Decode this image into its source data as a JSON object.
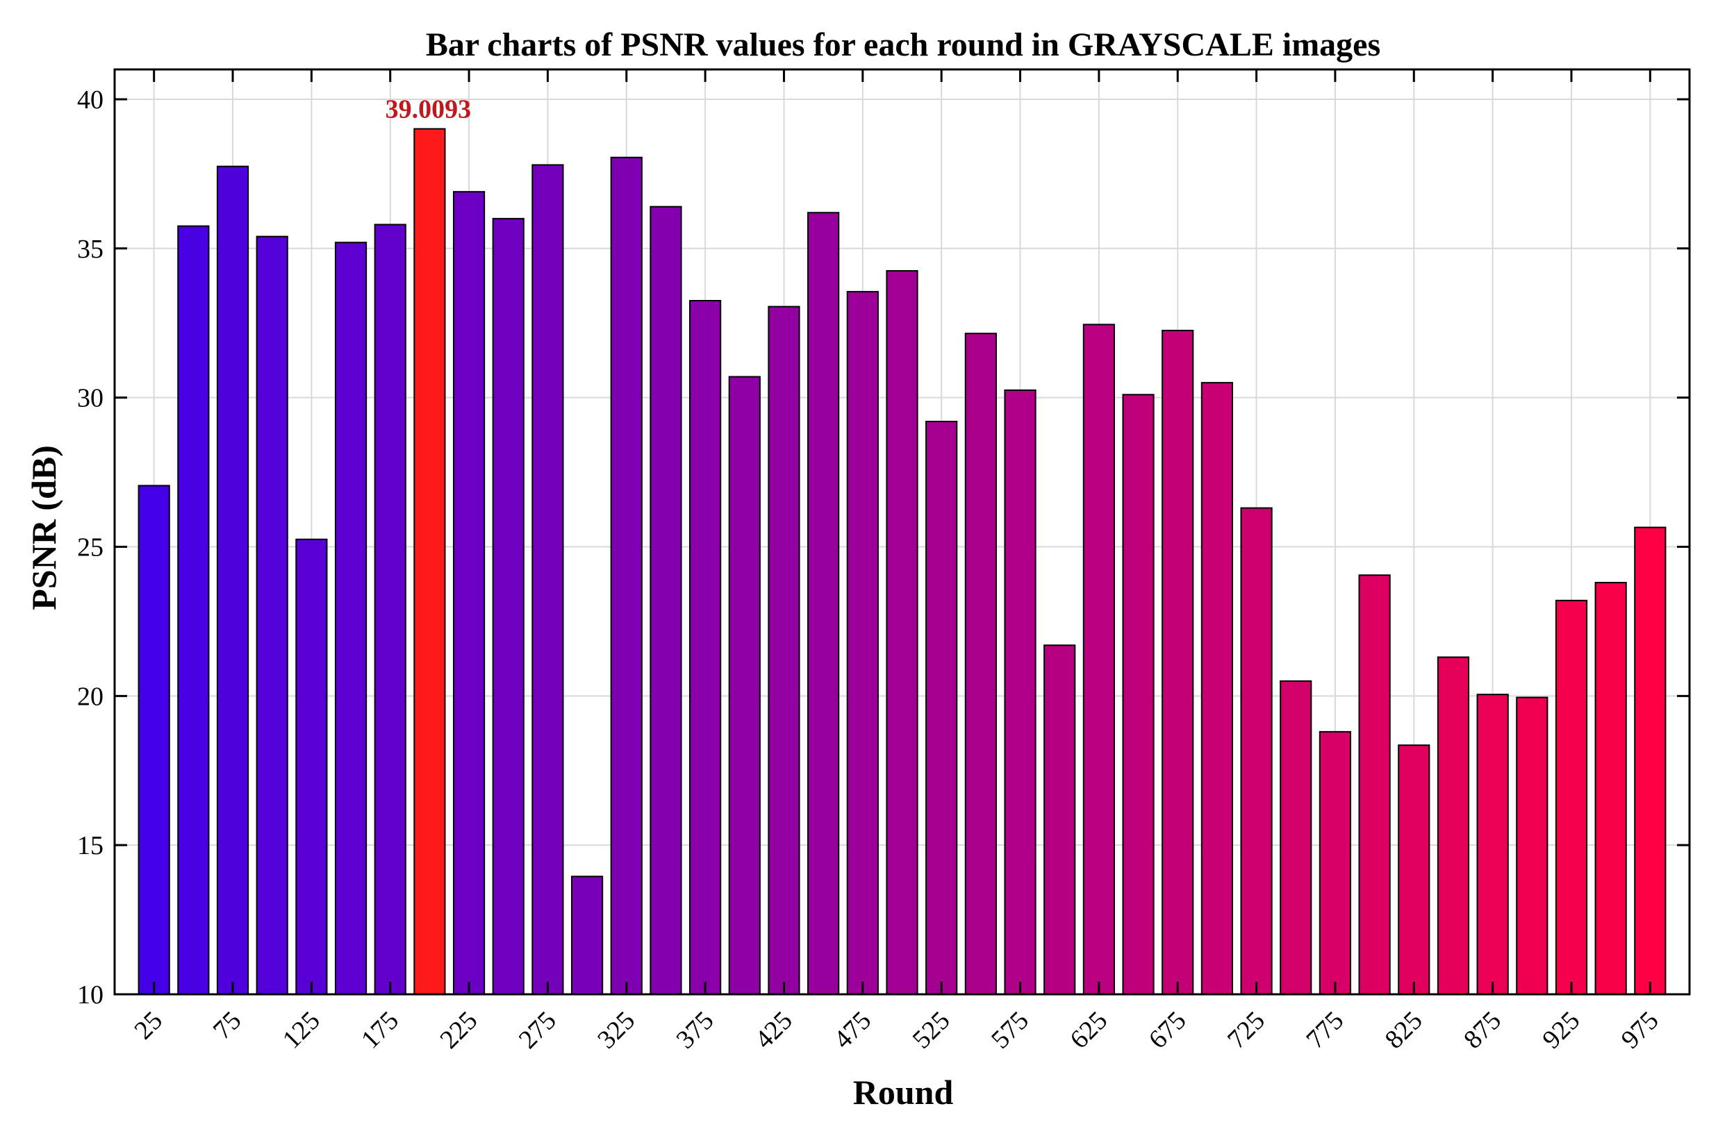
{
  "chart_data": {
    "type": "bar",
    "title": "Bar charts of PSNR values for each round in GRAYSCALE images",
    "xlabel": "Round",
    "ylabel": "PSNR (dB)",
    "ylim": [
      10,
      41
    ],
    "grid": true,
    "x": [
      25,
      50,
      75,
      100,
      125,
      150,
      175,
      200,
      225,
      250,
      275,
      300,
      325,
      350,
      375,
      400,
      425,
      450,
      475,
      500,
      525,
      550,
      575,
      600,
      625,
      650,
      675,
      700,
      725,
      750,
      775,
      800,
      825,
      850,
      875,
      900,
      925,
      950,
      975
    ],
    "values": [
      27.05,
      35.75,
      37.75,
      35.4,
      25.25,
      35.2,
      35.8,
      39.0093,
      36.9,
      36.0,
      37.8,
      13.95,
      38.05,
      36.4,
      33.25,
      30.7,
      33.05,
      36.2,
      33.55,
      34.25,
      29.2,
      32.15,
      30.25,
      21.7,
      32.45,
      30.1,
      32.25,
      30.5,
      26.3,
      20.5,
      18.8,
      24.05,
      18.35,
      21.3,
      20.05,
      19.95,
      23.2,
      23.8,
      25.65
    ],
    "xticks": [
      "25",
      "75",
      "125",
      "175",
      "225",
      "275",
      "325",
      "375",
      "425",
      "475",
      "525",
      "575",
      "625",
      "675",
      "725",
      "775",
      "825",
      "875",
      "925",
      "975"
    ],
    "yticks": [
      "10",
      "15",
      "20",
      "25",
      "30",
      "35",
      "40"
    ],
    "highlight_index": 7,
    "annotation": "39.0093",
    "colors": {
      "gradient_start": "#4400e6",
      "gradient_end": "#ff0044",
      "highlight": "#ff1a1a",
      "annotation": "#c0181c",
      "grid": "#d9d9d9"
    }
  }
}
